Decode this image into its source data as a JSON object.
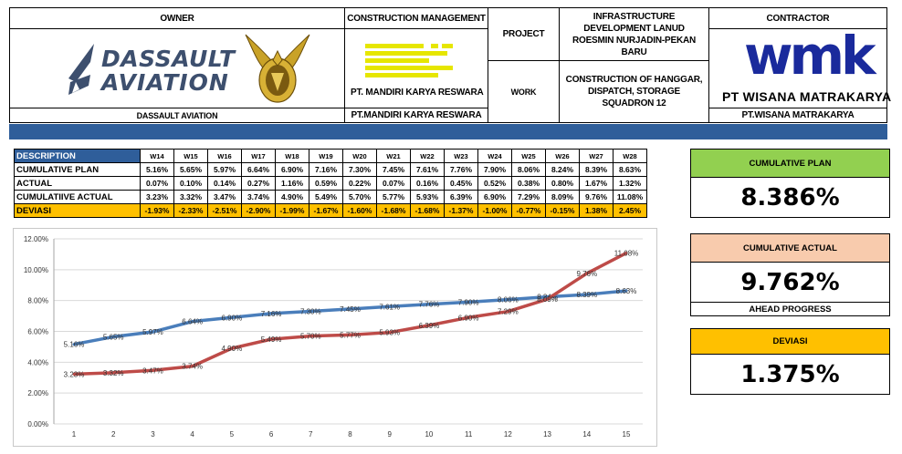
{
  "header": {
    "owner_title": "OWNER",
    "owner_logo_line1": "DASSAULT",
    "owner_logo_line2": "AVIATION",
    "owner_name": "DASSAULT AVIATION",
    "cm_title": "CONSTRUCTION MANAGEMENT",
    "cm_logo_text": "PT. MANDIRI KARYA RESWARA",
    "cm_name": "PT.MANDIRI KARYA RESWARA",
    "project_label": "PROJECT",
    "project_value": "INFRASTRUCTURE DEVELOPMENT LANUD ROESMIN NURJADIN-PEKAN BARU",
    "work_label": "WORK",
    "work_value": "CONSTRUCTION OF HANGGAR, DISPATCH, STORAGE SQUADRON 12",
    "contractor_title": "CONTRACTOR",
    "contractor_logo_text": "wmk",
    "contractor_logo_sub": "PT WISANA MATRAKARYA",
    "contractor_name": "PT.WISANA MATRAKARYA"
  },
  "table": {
    "desc_header": "DESCRIPTION",
    "weeks": [
      "W14",
      "W15",
      "W16",
      "W17",
      "W18",
      "W19",
      "W20",
      "W21",
      "W22",
      "W23",
      "W24",
      "W25",
      "W26",
      "W27",
      "W28"
    ],
    "rows": [
      {
        "label": "CUMULATIVE PLAN",
        "values": [
          "5.16%",
          "5.65%",
          "5.97%",
          "6.64%",
          "6.90%",
          "7.16%",
          "7.30%",
          "7.45%",
          "7.61%",
          "7.76%",
          "7.90%",
          "8.06%",
          "8.24%",
          "8.39%",
          "8.63%"
        ]
      },
      {
        "label": "ACTUAL",
        "values": [
          "0.07%",
          "0.10%",
          "0.14%",
          "0.27%",
          "1.16%",
          "0.59%",
          "0.22%",
          "0.07%",
          "0.16%",
          "0.45%",
          "0.52%",
          "0.38%",
          "0.80%",
          "1.67%",
          "1.32%"
        ]
      },
      {
        "label": "CUMULATIIVE ACTUAL",
        "values": [
          "3.23%",
          "3.32%",
          "3.47%",
          "3.74%",
          "4.90%",
          "5.49%",
          "5.70%",
          "5.77%",
          "5.93%",
          "6.39%",
          "6.90%",
          "7.29%",
          "8.09%",
          "9.76%",
          "11.08%"
        ]
      },
      {
        "label": "DEVIASI",
        "values": [
          "-1.93%",
          "-2.33%",
          "-2.51%",
          "-2.90%",
          "-1.99%",
          "-1.67%",
          "-1.60%",
          "-1.68%",
          "-1.68%",
          "-1.37%",
          "-1.00%",
          "-0.77%",
          "-0.15%",
          "1.38%",
          "2.45%"
        ]
      }
    ]
  },
  "kpi": {
    "plan_title": "CUMULATIVE PLAN",
    "plan_value": "8.386%",
    "actual_title": "CUMULATIVE ACTUAL",
    "actual_value": "9.762%",
    "actual_note": "AHEAD PROGRESS",
    "dev_title": "DEVIASI",
    "dev_value": "1.375%",
    "colors": {
      "plan": "#92d050",
      "actual": "#f8cbad",
      "dev": "#ffc000"
    }
  },
  "chart_data": {
    "type": "line",
    "x": [
      1,
      2,
      3,
      4,
      5,
      6,
      7,
      8,
      9,
      10,
      11,
      12,
      13,
      14,
      15
    ],
    "y_ticks": [
      "0.00%",
      "2.00%",
      "4.00%",
      "6.00%",
      "8.00%",
      "10.00%",
      "12.00%"
    ],
    "ylim": [
      0,
      12
    ],
    "series": [
      {
        "color": "#4a7ebb",
        "values": [
          5.16,
          5.65,
          5.97,
          6.64,
          6.9,
          7.16,
          7.3,
          7.45,
          7.61,
          7.76,
          7.9,
          8.06,
          8.24,
          8.39,
          8.63
        ],
        "labels": [
          "5.16%",
          "5.65%",
          "5.97%",
          "6.64%",
          "6.90%",
          "7.16%",
          "7.30%",
          "7.45%",
          "7.61%",
          "7.76%",
          "7.90%",
          "8.06%",
          "8.24%",
          "8.39%",
          "8.63%"
        ]
      },
      {
        "color": "#be4b48",
        "values": [
          3.23,
          3.32,
          3.47,
          3.74,
          4.9,
          5.49,
          5.7,
          5.77,
          5.93,
          6.39,
          6.9,
          7.29,
          8.09,
          9.76,
          11.08
        ],
        "labels": [
          "3.23%",
          "3.32%",
          "3.47%",
          "3.74%",
          "4.90%",
          "5.49%",
          "5.70%",
          "5.77%",
          "5.93%",
          "6.39%",
          "6.90%",
          "7.29%",
          "8.09%",
          "9.76%",
          "11.08%"
        ]
      }
    ],
    "grid": true
  }
}
